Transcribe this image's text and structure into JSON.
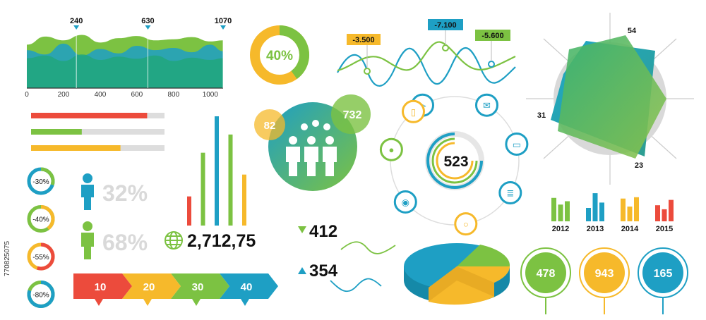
{
  "colors": {
    "teal": "#1e9fc4",
    "green": "#7cc242",
    "yellow": "#f6b92b",
    "red": "#ec4b3c",
    "dark": "#111111",
    "gray": "#d9d9d9"
  },
  "stock_id": "770825075",
  "chart_data": [
    {
      "type": "area",
      "x_ticks": [
        "0",
        "200",
        "400",
        "600",
        "800",
        "1000"
      ],
      "xlim": [
        0,
        1070
      ],
      "callouts": [
        {
          "x": 270,
          "label": "240"
        },
        {
          "x": 660,
          "label": "630"
        },
        {
          "x": 1070,
          "label": "1070"
        }
      ],
      "series": [
        {
          "color": "#7cc242",
          "values": [
            [
              0,
              80
            ],
            [
              100,
              95
            ],
            [
              200,
              88
            ],
            [
              300,
              98
            ],
            [
              400,
              84
            ],
            [
              500,
              92
            ],
            [
              600,
              96
            ],
            [
              700,
              88
            ],
            [
              800,
              90
            ],
            [
              900,
              94
            ],
            [
              1000,
              86
            ],
            [
              1070,
              88
            ]
          ]
        },
        {
          "color": "#1e9fc4",
          "values": [
            [
              0,
              70
            ],
            [
              100,
              62
            ],
            [
              200,
              82
            ],
            [
              300,
              60
            ],
            [
              400,
              72
            ],
            [
              500,
              64
            ],
            [
              600,
              78
            ],
            [
              700,
              70
            ],
            [
              800,
              74
            ],
            [
              900,
              66
            ],
            [
              1000,
              80
            ],
            [
              1070,
              68
            ]
          ]
        },
        {
          "color": "#21a77c",
          "values": [
            [
              0,
              55
            ],
            [
              100,
              60
            ],
            [
              200,
              50
            ],
            [
              300,
              62
            ],
            [
              400,
              52
            ],
            [
              500,
              58
            ],
            [
              600,
              54
            ],
            [
              700,
              60
            ],
            [
              800,
              50
            ],
            [
              900,
              56
            ],
            [
              1000,
              52
            ],
            [
              1070,
              55
            ]
          ]
        }
      ]
    },
    {
      "type": "pie",
      "title": "",
      "value_label": "40%",
      "slices": [
        {
          "value": 40,
          "color": "#7cc242"
        },
        {
          "value": 60,
          "color": "#f6b92b"
        }
      ]
    },
    {
      "type": "line",
      "callouts": [
        {
          "label": "-3.500",
          "color": "#f6b92b"
        },
        {
          "label": "-7.100",
          "color": "#1e9fc4"
        },
        {
          "label": "-5.600",
          "color": "#7cc242"
        }
      ]
    },
    {
      "type": "radar",
      "labels": {
        "top": "54",
        "left": "31",
        "bottom": "23"
      }
    },
    {
      "type": "bar",
      "orientation": "horizontal",
      "values": [
        {
          "fraction": 0.87,
          "color": "#ec4b3c"
        },
        {
          "fraction": 0.38,
          "color": "#7cc242"
        },
        {
          "fraction": 0.67,
          "color": "#f6b92b"
        }
      ]
    },
    {
      "type": "pie",
      "variant": "donut-list",
      "items": [
        {
          "label": "-30%",
          "fraction": 0.3,
          "color": "#7cc242"
        },
        {
          "label": "-40%",
          "fraction": 0.4,
          "color": "#f6b92b"
        },
        {
          "label": "-55%",
          "fraction": 0.55,
          "color": "#ec4b3c"
        },
        {
          "label": "-80%",
          "fraction": 0.8,
          "color": "#1e9fc4"
        }
      ]
    },
    {
      "type": "bar",
      "variant": "gender-percent",
      "items": [
        {
          "label": "32%",
          "color": "#1e9fc4"
        },
        {
          "label": "68%",
          "color": "#7cc242"
        }
      ]
    },
    {
      "type": "bar",
      "variant": "vertical-thin",
      "values": [
        {
          "value": 40,
          "color": "#ec4b3c"
        },
        {
          "value": 100,
          "color": "#7cc242"
        },
        {
          "value": 150,
          "color": "#1e9fc4"
        },
        {
          "value": 125,
          "color": "#7cc242"
        },
        {
          "value": 70,
          "color": "#f6b92b"
        }
      ]
    },
    {
      "type": "bubble",
      "bubbles": [
        {
          "label": "82",
          "color": "#f6b92b"
        },
        {
          "label": "732",
          "color": "#7cc242"
        }
      ]
    },
    {
      "type": "pie",
      "variant": "ring-network",
      "center_label": "523",
      "icons": [
        "megaphone-icon",
        "mail-icon",
        "laptop-icon",
        "document-icon",
        "magnifier-icon",
        "location-pin-icon",
        "lightbulb-icon",
        "phone-icon"
      ]
    },
    {
      "type": "bar",
      "variant": "grouped-years",
      "categories": [
        "2012",
        "2013",
        "2014",
        "2015"
      ],
      "group_colors": [
        "#7cc242",
        "#1e9fc4",
        "#f6b92b",
        "#ec4b3c"
      ],
      "series_values": [
        [
          35,
          25,
          30
        ],
        [
          20,
          42,
          28
        ],
        [
          34,
          22,
          36
        ],
        [
          24,
          18,
          32
        ]
      ]
    },
    {
      "type": "area",
      "variant": "arrow-steps",
      "steps": [
        {
          "label": "10",
          "color": "#ec4b3c"
        },
        {
          "label": "20",
          "color": "#f6b92b"
        },
        {
          "label": "30",
          "color": "#7cc242"
        },
        {
          "label": "40",
          "color": "#1e9fc4"
        }
      ]
    },
    {
      "type": "line",
      "variant": "trend-numbers",
      "items": [
        {
          "label": "412",
          "direction": "down",
          "color": "#7cc242"
        },
        {
          "label": "354",
          "direction": "up",
          "color": "#1e9fc4"
        }
      ]
    },
    {
      "type": "pie",
      "variant": "3d",
      "slices": [
        {
          "value": 55,
          "color": "#1e9fc4"
        },
        {
          "value": 25,
          "color": "#7cc242"
        },
        {
          "value": 20,
          "color": "#f6b92b"
        }
      ]
    },
    {
      "type": "pie",
      "variant": "circle-pins",
      "items": [
        {
          "label": "478",
          "color": "#7cc242"
        },
        {
          "label": "943",
          "color": "#f6b92b"
        },
        {
          "label": "165",
          "color": "#1e9fc4"
        }
      ]
    }
  ],
  "globe_value": "2,712,75"
}
